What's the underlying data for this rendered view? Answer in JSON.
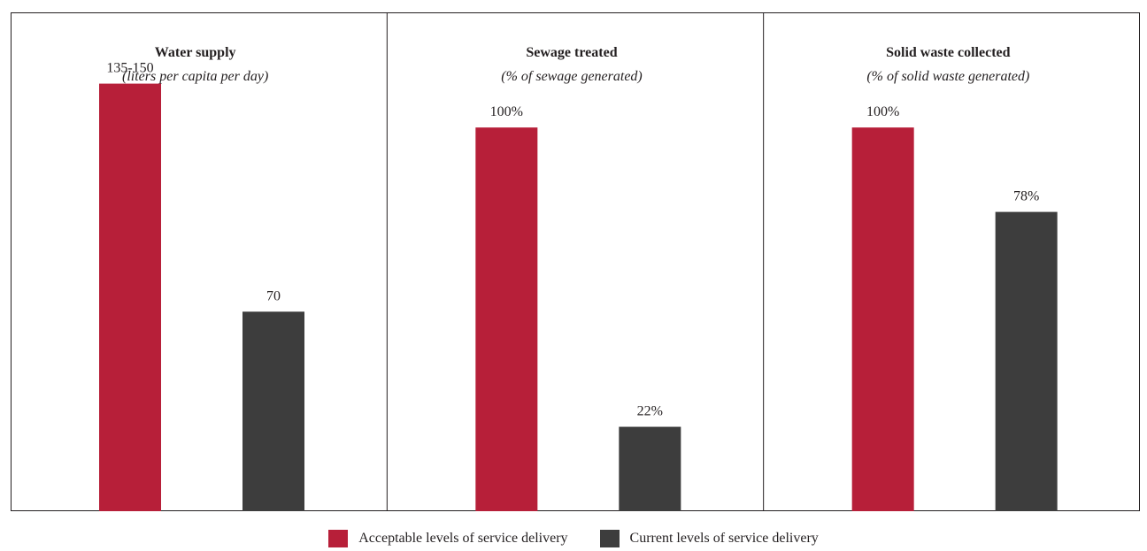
{
  "chart_data": {
    "type": "bar",
    "panels": [
      {
        "title": "Water supply",
        "subtitle": "(liters per capita per day)",
        "series": [
          {
            "name": "Acceptable levels of service delivery",
            "value": 150,
            "label": "135-150"
          },
          {
            "name": "Current levels of service delivery",
            "value": 70,
            "label": "70"
          }
        ],
        "ylim": [
          0,
          175
        ]
      },
      {
        "title": "Sewage treated",
        "subtitle": "(% of sewage generated)",
        "series": [
          {
            "name": "Acceptable levels of service delivery",
            "value": 100,
            "label": "100%"
          },
          {
            "name": "Current levels of service delivery",
            "value": 22,
            "label": "22%"
          }
        ],
        "ylim": [
          0,
          130
        ]
      },
      {
        "title": "Solid waste collected",
        "subtitle": "(% of solid waste generated)",
        "series": [
          {
            "name": "Acceptable levels of service delivery",
            "value": 100,
            "label": "100%"
          },
          {
            "name": "Current levels of service delivery",
            "value": 78,
            "label": "78%"
          }
        ],
        "ylim": [
          0,
          130
        ]
      }
    ],
    "legend": {
      "position": "bottom-center",
      "items": [
        {
          "name": "Acceptable levels of service delivery",
          "color": "#b71f39"
        },
        {
          "name": "Current levels of service delivery",
          "color": "#3d3d3d"
        }
      ]
    },
    "grid": false
  }
}
